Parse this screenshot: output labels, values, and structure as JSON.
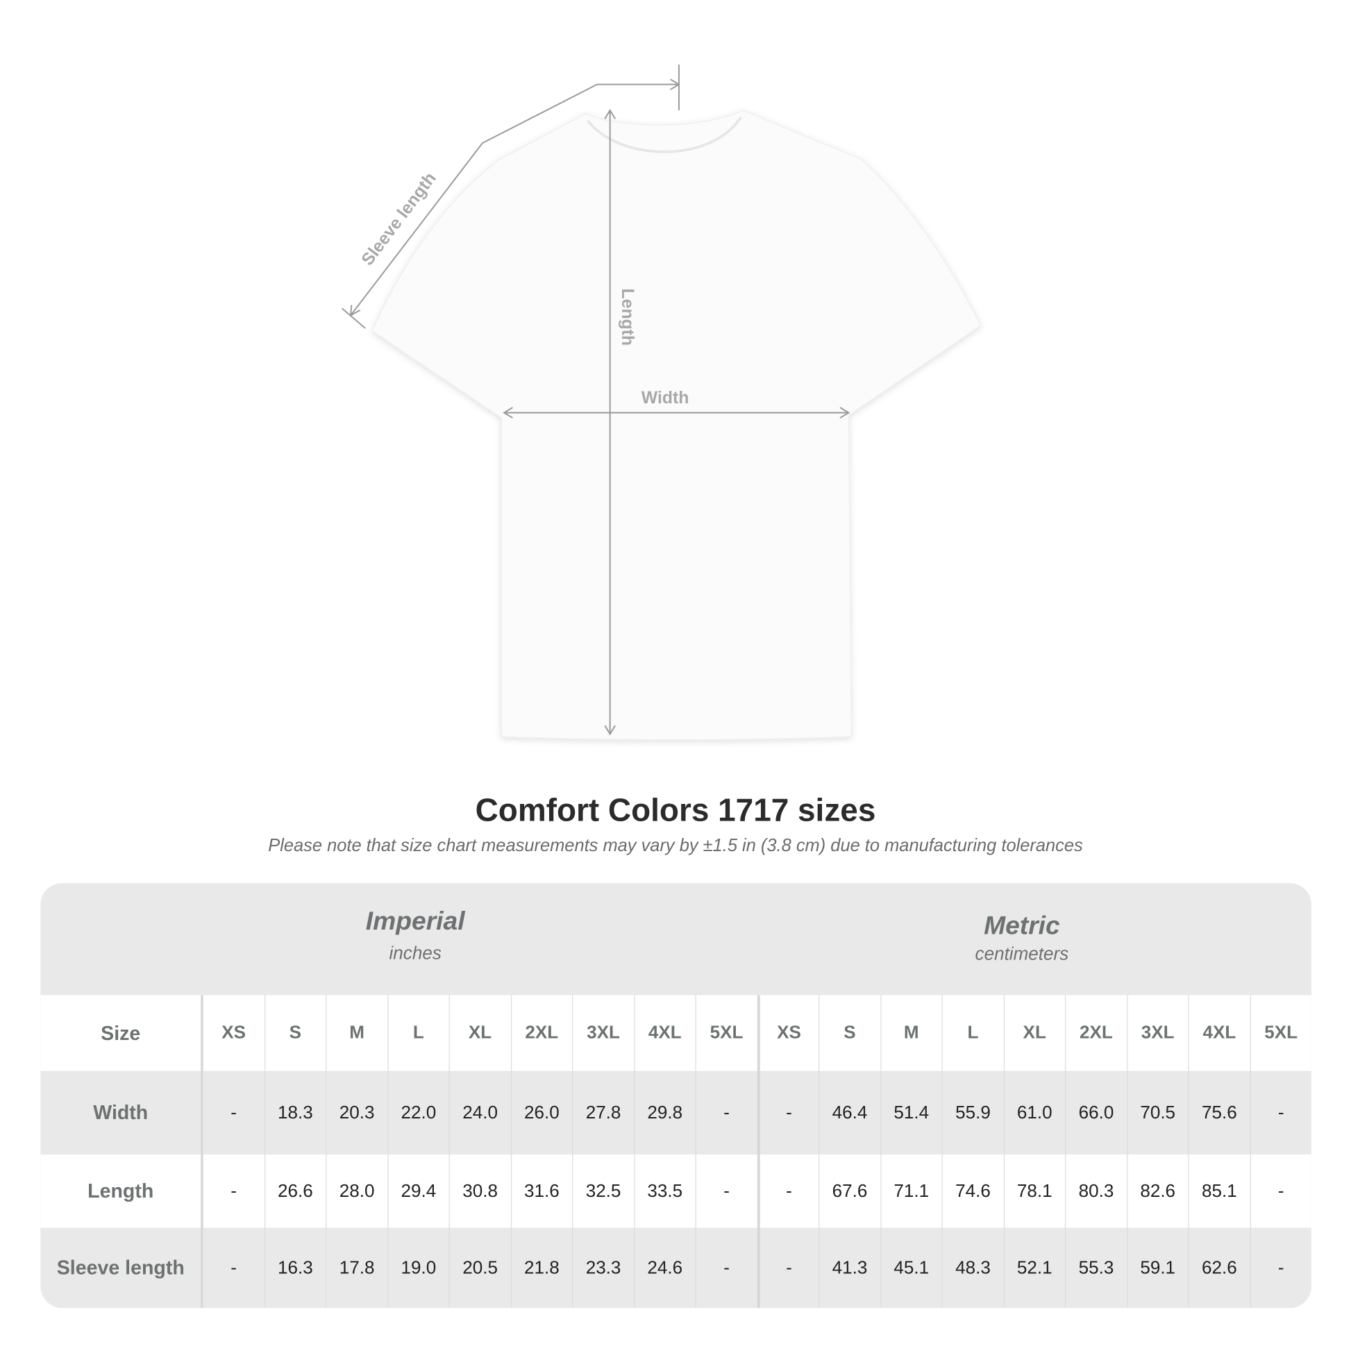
{
  "diagram": {
    "labels": {
      "sleeve": "Sleeve length",
      "length": "Length",
      "width": "Width"
    }
  },
  "title": "Comfort Colors 1717 sizes",
  "note": "Please note that size chart measurements may vary by ±1.5 in (3.8 cm) due to manufacturing tolerances",
  "table": {
    "imperial": {
      "label": "Imperial",
      "unit": "inches"
    },
    "metric": {
      "label": "Metric",
      "unit": "centimeters"
    },
    "size_label": "Size",
    "sizes": [
      "XS",
      "S",
      "M",
      "L",
      "XL",
      "2XL",
      "3XL",
      "4XL",
      "5XL"
    ],
    "rows": [
      {
        "label": "Width",
        "imperial": [
          "-",
          "18.3",
          "20.3",
          "22.0",
          "24.0",
          "26.0",
          "27.8",
          "29.8",
          "-"
        ],
        "metric": [
          "-",
          "46.4",
          "51.4",
          "55.9",
          "61.0",
          "66.0",
          "70.5",
          "75.6",
          "-"
        ]
      },
      {
        "label": "Length",
        "imperial": [
          "-",
          "26.6",
          "28.0",
          "29.4",
          "30.8",
          "31.6",
          "32.5",
          "33.5",
          "-"
        ],
        "metric": [
          "-",
          "67.6",
          "71.1",
          "74.6",
          "78.1",
          "80.3",
          "82.6",
          "85.1",
          "-"
        ]
      },
      {
        "label": "Sleeve length",
        "imperial": [
          "-",
          "16.3",
          "17.8",
          "19.0",
          "20.5",
          "21.8",
          "23.3",
          "24.6",
          "-"
        ],
        "metric": [
          "-",
          "41.3",
          "45.1",
          "48.3",
          "52.1",
          "55.3",
          "59.1",
          "62.6",
          "-"
        ]
      }
    ]
  },
  "colors": {
    "arrow": "#9a9a9a",
    "label_grey": "#6c7172",
    "band": "#e9e9e9"
  }
}
